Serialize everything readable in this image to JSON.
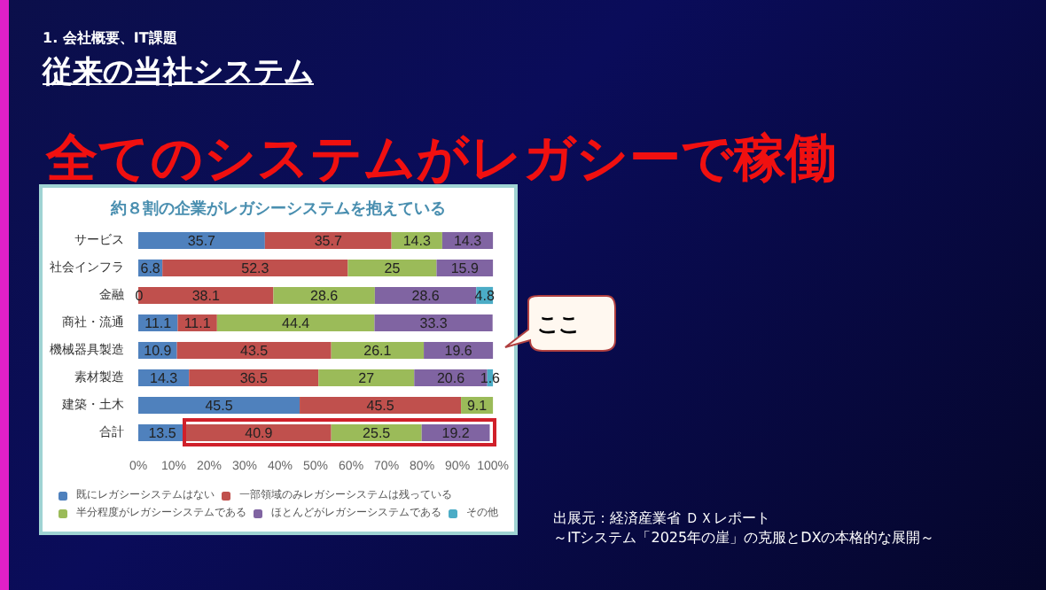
{
  "chart_data": {
    "type": "bar",
    "orientation": "horizontal",
    "stacked": true,
    "title": "約８割の企業がレガシーシステムを抱えている",
    "categories": [
      "サービス",
      "社会インフラ",
      "金融",
      "商社・流通",
      "機械器具製造",
      "素材製造",
      "建築・土木",
      "合計"
    ],
    "series": [
      {
        "name": "既にレガシーシステムはない",
        "color": "#4f81bd",
        "values": [
          35.7,
          6.8,
          0,
          11.1,
          10.9,
          14.3,
          45.5,
          13.5
        ]
      },
      {
        "name": "一部領域のみレガシーシステムは残っている",
        "color": "#c0504d",
        "values": [
          35.7,
          52.3,
          38.1,
          11.1,
          43.5,
          36.5,
          45.5,
          40.9
        ]
      },
      {
        "name": "半分程度がレガシーシステムである",
        "color": "#9bbb59",
        "values": [
          14.3,
          25,
          28.6,
          44.4,
          26.1,
          27,
          9.1,
          25.5
        ]
      },
      {
        "name": "ほとんどがレガシーシステムである",
        "color": "#8064a2",
        "values": [
          14.3,
          15.9,
          28.6,
          33.3,
          19.6,
          20.6,
          null,
          19.2
        ]
      },
      {
        "name": "その他",
        "color": "#4bacc6",
        "values": [
          null,
          null,
          4.8,
          null,
          null,
          1.6,
          null,
          null
        ]
      }
    ],
    "xlim": [
      0,
      100
    ],
    "xticks": [
      {
        "value": 0,
        "label": "0%"
      },
      {
        "value": 10,
        "label": "10%"
      },
      {
        "value": 20,
        "label": "20%"
      },
      {
        "value": 30,
        "label": "30%"
      },
      {
        "value": 40,
        "label": "40%"
      },
      {
        "value": 50,
        "label": "50%"
      },
      {
        "value": 60,
        "label": "60%"
      },
      {
        "value": 70,
        "label": "70%"
      },
      {
        "value": 80,
        "label": "80%"
      },
      {
        "value": 90,
        "label": "90%"
      },
      {
        "value": 100,
        "label": "100%"
      }
    ],
    "data_labels": true,
    "grid": false,
    "legend": "bottom",
    "annotations": [
      "1. 会社概要、IT課題",
      "従来の当社システム",
      "全てのシステムがレガシーで稼働",
      "ここ",
      "出展元：経済産業省 ＤＸレポート",
      "～ITシステム「2025年の崖」の克服とDXの本格的な展開～"
    ]
  }
}
